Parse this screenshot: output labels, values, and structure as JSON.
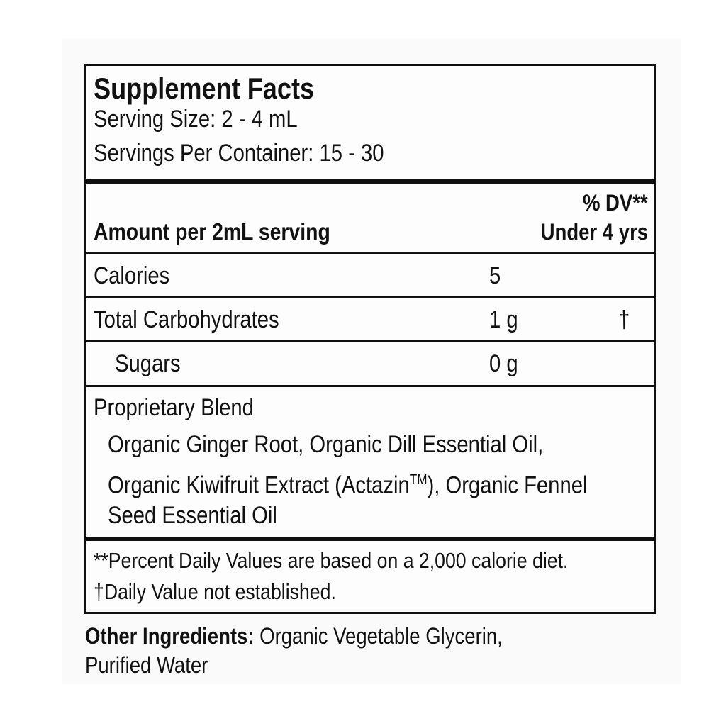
{
  "header": {
    "title": "Supplement Facts",
    "serving_size": "Serving Size: 2 - 4 mL",
    "servings_per_container": "Servings Per Container: 15 - 30"
  },
  "column_headers": {
    "amount": "Amount per 2mL serving",
    "dv_line1": "% DV**",
    "dv_line2": "Under 4 yrs"
  },
  "rows": [
    {
      "name": "Calories",
      "amount": "5",
      "dv": ""
    },
    {
      "name": "Total Carbohydrates",
      "amount": "1 g",
      "dv": "†"
    },
    {
      "name": "Sugars",
      "amount": "0 g",
      "dv": ""
    }
  ],
  "blend": {
    "name": "Proprietary Blend",
    "line1": "Organic Ginger Root, Organic Dill Essential Oil,",
    "line2a": "Organic Kiwifruit Extract (Actazin",
    "tm": "TM",
    "line2b": "), Organic Fennel",
    "line3": "Seed Essential Oil"
  },
  "footnotes": {
    "dv_note": "**Percent Daily Values are based on a 2,000 calorie diet.",
    "dagger_note": "†Daily Value not established."
  },
  "other_ingredients": {
    "label": "Other Ingredients:",
    "line1": " Organic Vegetable Glycerin,",
    "line2": "Purified Water"
  }
}
